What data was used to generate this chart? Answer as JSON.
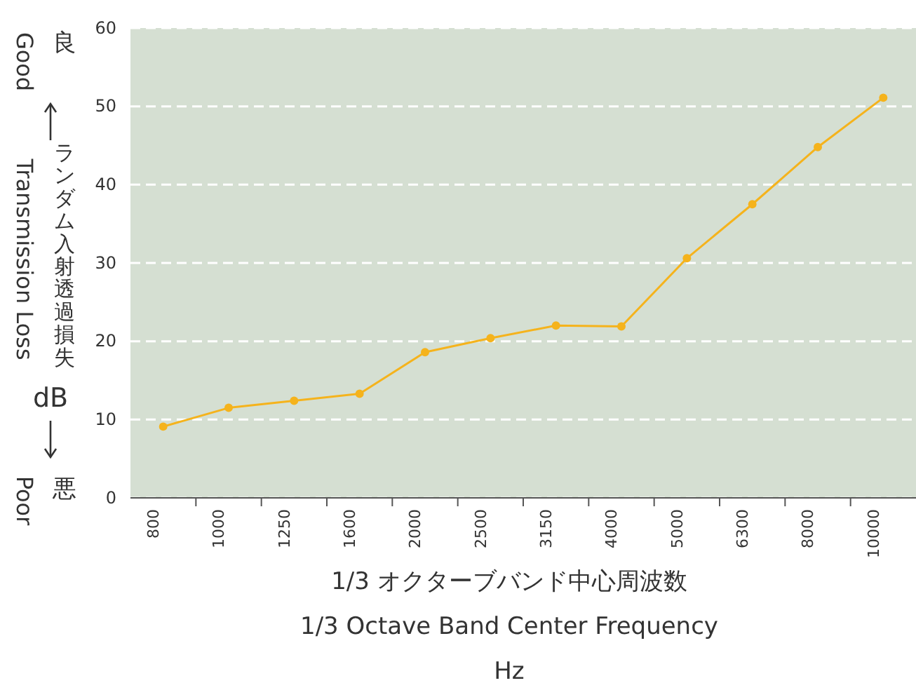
{
  "chart_data": {
    "type": "line",
    "xlabel": "1/3 オクターブバンド中心周波数\n1/3 Octave Band Center Frequency\nHz",
    "ylabel": "Transmission Loss",
    "annotations": [
      "ランダム入射透過損失",
      "dB",
      "良",
      "Good",
      "悪",
      "Poor"
    ],
    "categories": [
      "800",
      "1000",
      "1250",
      "1600",
      "2000",
      "2500",
      "3150",
      "4000",
      "5000",
      "6300",
      "8000",
      "10000"
    ],
    "series": [
      {
        "color": "#f5b31c",
        "values": [
          9.1,
          11.5,
          12.4,
          13.3,
          18.6,
          20.4,
          22.0,
          21.9,
          30.6,
          37.5,
          44.8,
          51.1
        ]
      }
    ],
    "ylim": [
      0,
      60
    ],
    "yticks": [
      0,
      10,
      20,
      30,
      40,
      50,
      60
    ],
    "grid": "y",
    "marker": "circle",
    "line_style": "solid"
  }
}
